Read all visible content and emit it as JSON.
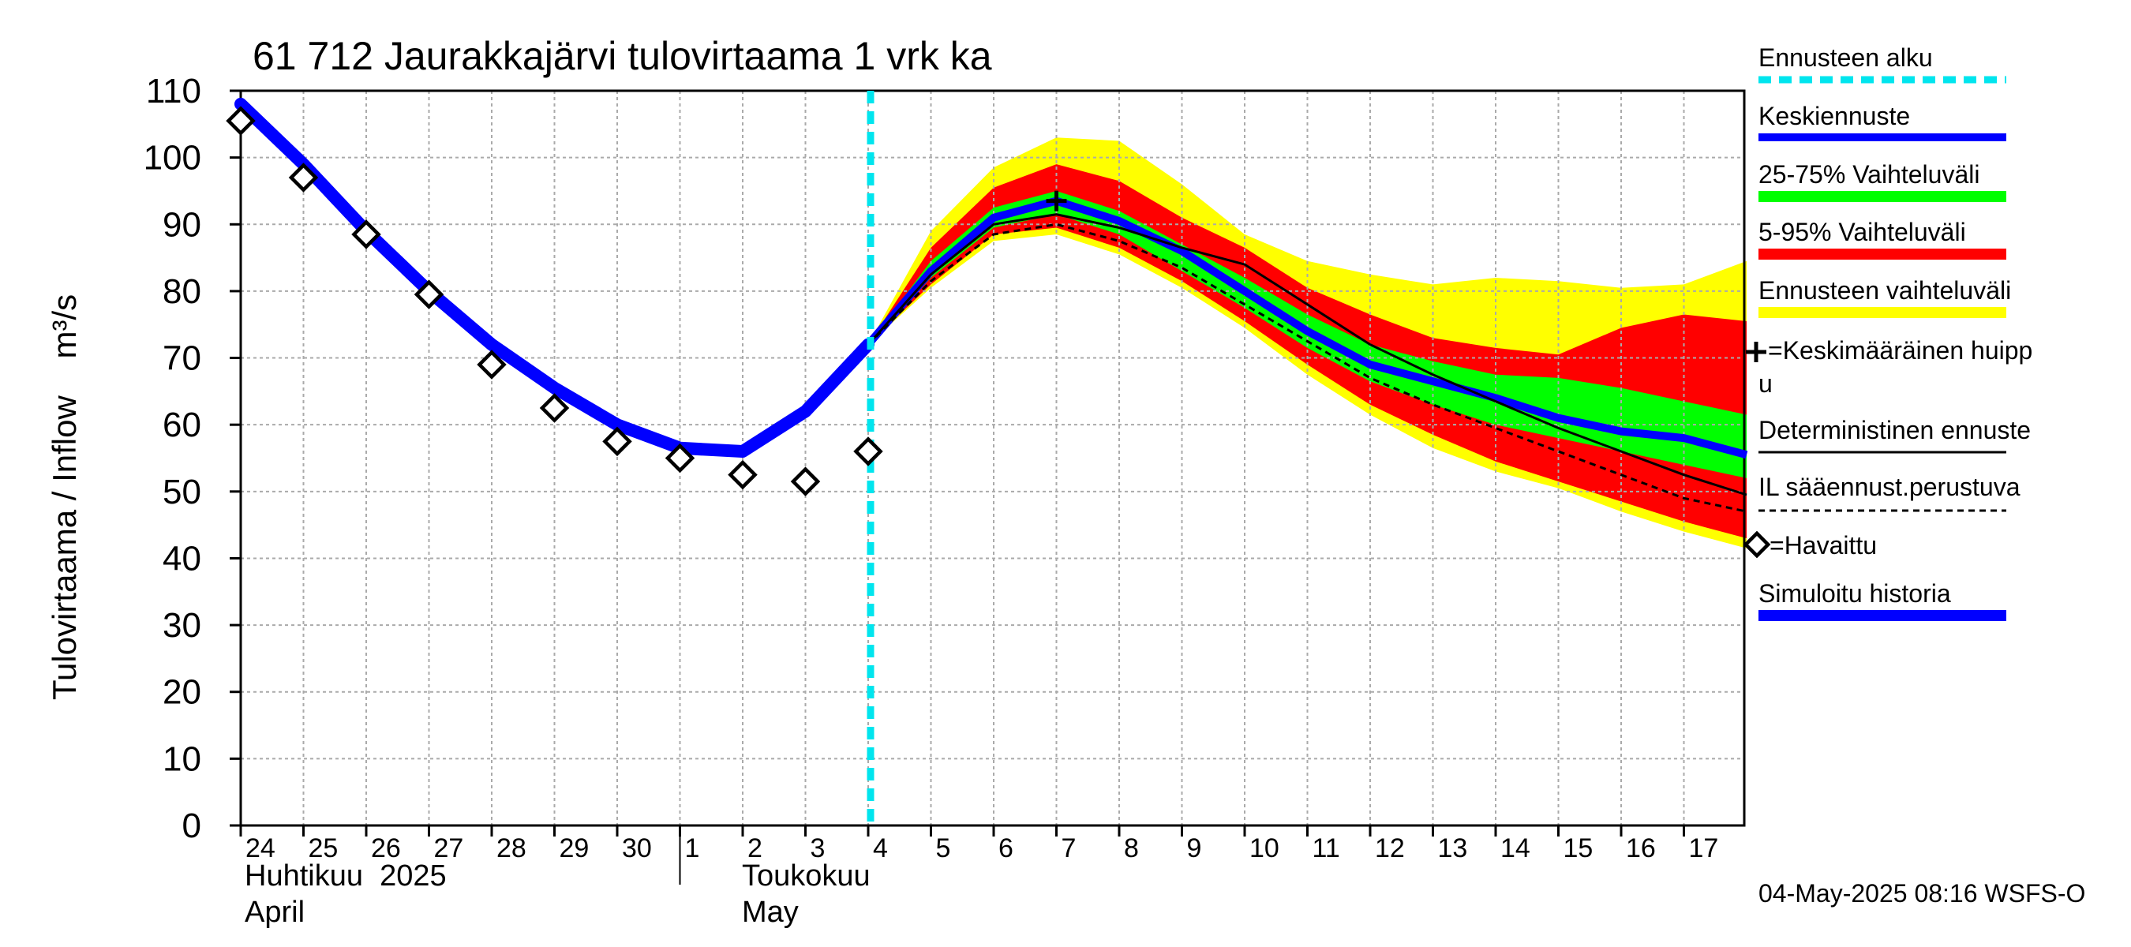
{
  "chart_data": {
    "type": "area",
    "title": "61 712 Jaurakkajärvi tulovirtaama 1 vrk ka",
    "ylabel": "Tulovirtaama / Inflow    m³/s",
    "ylim": [
      0,
      110
    ],
    "yticks": [
      0,
      10,
      20,
      30,
      40,
      50,
      60,
      70,
      80,
      90,
      100,
      110
    ],
    "grid": true,
    "legend_position": "right",
    "x_tick_labels": [
      "24",
      "25",
      "26",
      "27",
      "28",
      "29",
      "30",
      "1",
      "2",
      "3",
      "4",
      "5",
      "6",
      "7",
      "8",
      "9",
      "10",
      "11",
      "12",
      "13",
      "14",
      "15",
      "16",
      "17"
    ],
    "month_labels": [
      {
        "line1": "Huhtikuu  2025",
        "line2": "April"
      },
      {
        "line1": "Toukokuu",
        "line2": "May"
      }
    ],
    "forecast_start": "2025-05-04",
    "series": {
      "observed": {
        "name": "=Havaittu",
        "x": [
          "2025-04-24",
          "2025-04-25",
          "2025-04-26",
          "2025-04-27",
          "2025-04-28",
          "2025-04-29",
          "2025-04-30",
          "2025-05-01",
          "2025-05-02",
          "2025-05-03",
          "2025-05-04"
        ],
        "y": [
          105.5,
          97,
          88.5,
          79.5,
          69,
          62.5,
          57.5,
          55,
          52.5,
          51.5,
          56
        ]
      },
      "simulated_history": {
        "name": "Simuloitu historia",
        "x": [
          "2025-04-24",
          "2025-04-25",
          "2025-04-26",
          "2025-04-27",
          "2025-04-28",
          "2025-04-29",
          "2025-04-30",
          "2025-05-01",
          "2025-05-02",
          "2025-05-03",
          "2025-05-04"
        ],
        "y": [
          108,
          99,
          89,
          80,
          72,
          65.5,
          60,
          56.5,
          56,
          62,
          72
        ]
      },
      "forecast_x": [
        "2025-05-04",
        "2025-05-05",
        "2025-05-06",
        "2025-05-07",
        "2025-05-08",
        "2025-05-09",
        "2025-05-10",
        "2025-05-11",
        "2025-05-12",
        "2025-05-13",
        "2025-05-14",
        "2025-05-15",
        "2025-05-16",
        "2025-05-17",
        "2025-05-18"
      ],
      "mean_forecast": {
        "name": "Keskiennuste",
        "y": [
          72,
          83,
          91,
          93.5,
          90.5,
          86,
          80,
          74,
          69,
          66.5,
          64,
          61,
          59,
          58,
          55.5
        ]
      },
      "range_25_75": {
        "name": "25-75% Vaihteluväli",
        "lower": [
          72,
          82,
          89.5,
          91.5,
          88.5,
          83,
          77.5,
          71.5,
          66.5,
          63,
          60,
          58,
          56,
          54,
          52
        ],
        "upper": [
          72,
          84.5,
          92.5,
          95,
          92,
          87,
          82,
          76.5,
          72,
          69.5,
          67.5,
          67,
          65.5,
          63.5,
          61.5
        ]
      },
      "range_5_95": {
        "name": "5-95% Vaihteluväli",
        "lower": [
          72,
          81,
          88.5,
          89.5,
          86.5,
          81.5,
          75.5,
          69,
          63,
          58.5,
          54.5,
          51.5,
          48.5,
          45.5,
          43
        ],
        "upper": [
          72,
          86.5,
          95.5,
          99,
          96.5,
          91,
          86.5,
          80.5,
          76.5,
          73,
          71.5,
          70.5,
          74.5,
          76.5,
          75.5
        ]
      },
      "range_full": {
        "name": "Ennusteen vaihteluväli",
        "lower": [
          72,
          80.5,
          87.5,
          88.5,
          85.5,
          80.5,
          74.5,
          67.5,
          61.5,
          56.5,
          53,
          50.5,
          47,
          44,
          41.5
        ],
        "upper": [
          72,
          89,
          98.5,
          103,
          102.5,
          96,
          88.5,
          84.5,
          82.5,
          81,
          82,
          81.5,
          80.5,
          81,
          84.5
        ]
      },
      "deterministic": {
        "name": "Deterministinen ennuste",
        "y": [
          72,
          82.5,
          90,
          91.5,
          89.5,
          86.5,
          84,
          78,
          72,
          67.5,
          63.5,
          59.5,
          56,
          52.5,
          49.5
        ]
      },
      "weather_based": {
        "name": "IL sääennust.perustuva",
        "y": [
          72,
          81.5,
          88.5,
          90,
          87.5,
          83.5,
          78,
          72.5,
          67,
          63,
          59.5,
          56,
          52.5,
          49,
          47
        ]
      },
      "mean_peak": {
        "name": "=Keskimääräinen huipp u",
        "x": "2025-05-07",
        "y": 93.5
      }
    },
    "colors": {
      "mean_forecast": "#0000ff",
      "range_25_75": "#00ff00",
      "range_5_95": "#ff0000",
      "range_full": "#ffff00",
      "forecast_start": "#00e5ee",
      "simulated_history": "#0000ff",
      "deterministic": "#000000",
      "weather_based": "#000000",
      "grid": "#aaaaaa"
    }
  },
  "legend": {
    "items": [
      {
        "label": "Ennusteen alku"
      },
      {
        "label": "Keskiennuste"
      },
      {
        "label": "25-75% Vaihteluväli"
      },
      {
        "label": "5-95% Vaihteluväli"
      },
      {
        "label": "Ennusteen vaihteluväli"
      },
      {
        "label": "=Keskimääräinen huipp",
        "label2": "u"
      },
      {
        "label": "Deterministinen ennuste"
      },
      {
        "label": "IL sääennust.perustuva"
      },
      {
        "label": "=Havaittu"
      },
      {
        "label": "Simuloitu historia"
      }
    ]
  },
  "footer": {
    "timestamp": "04-May-2025 08:16 WSFS-O"
  }
}
